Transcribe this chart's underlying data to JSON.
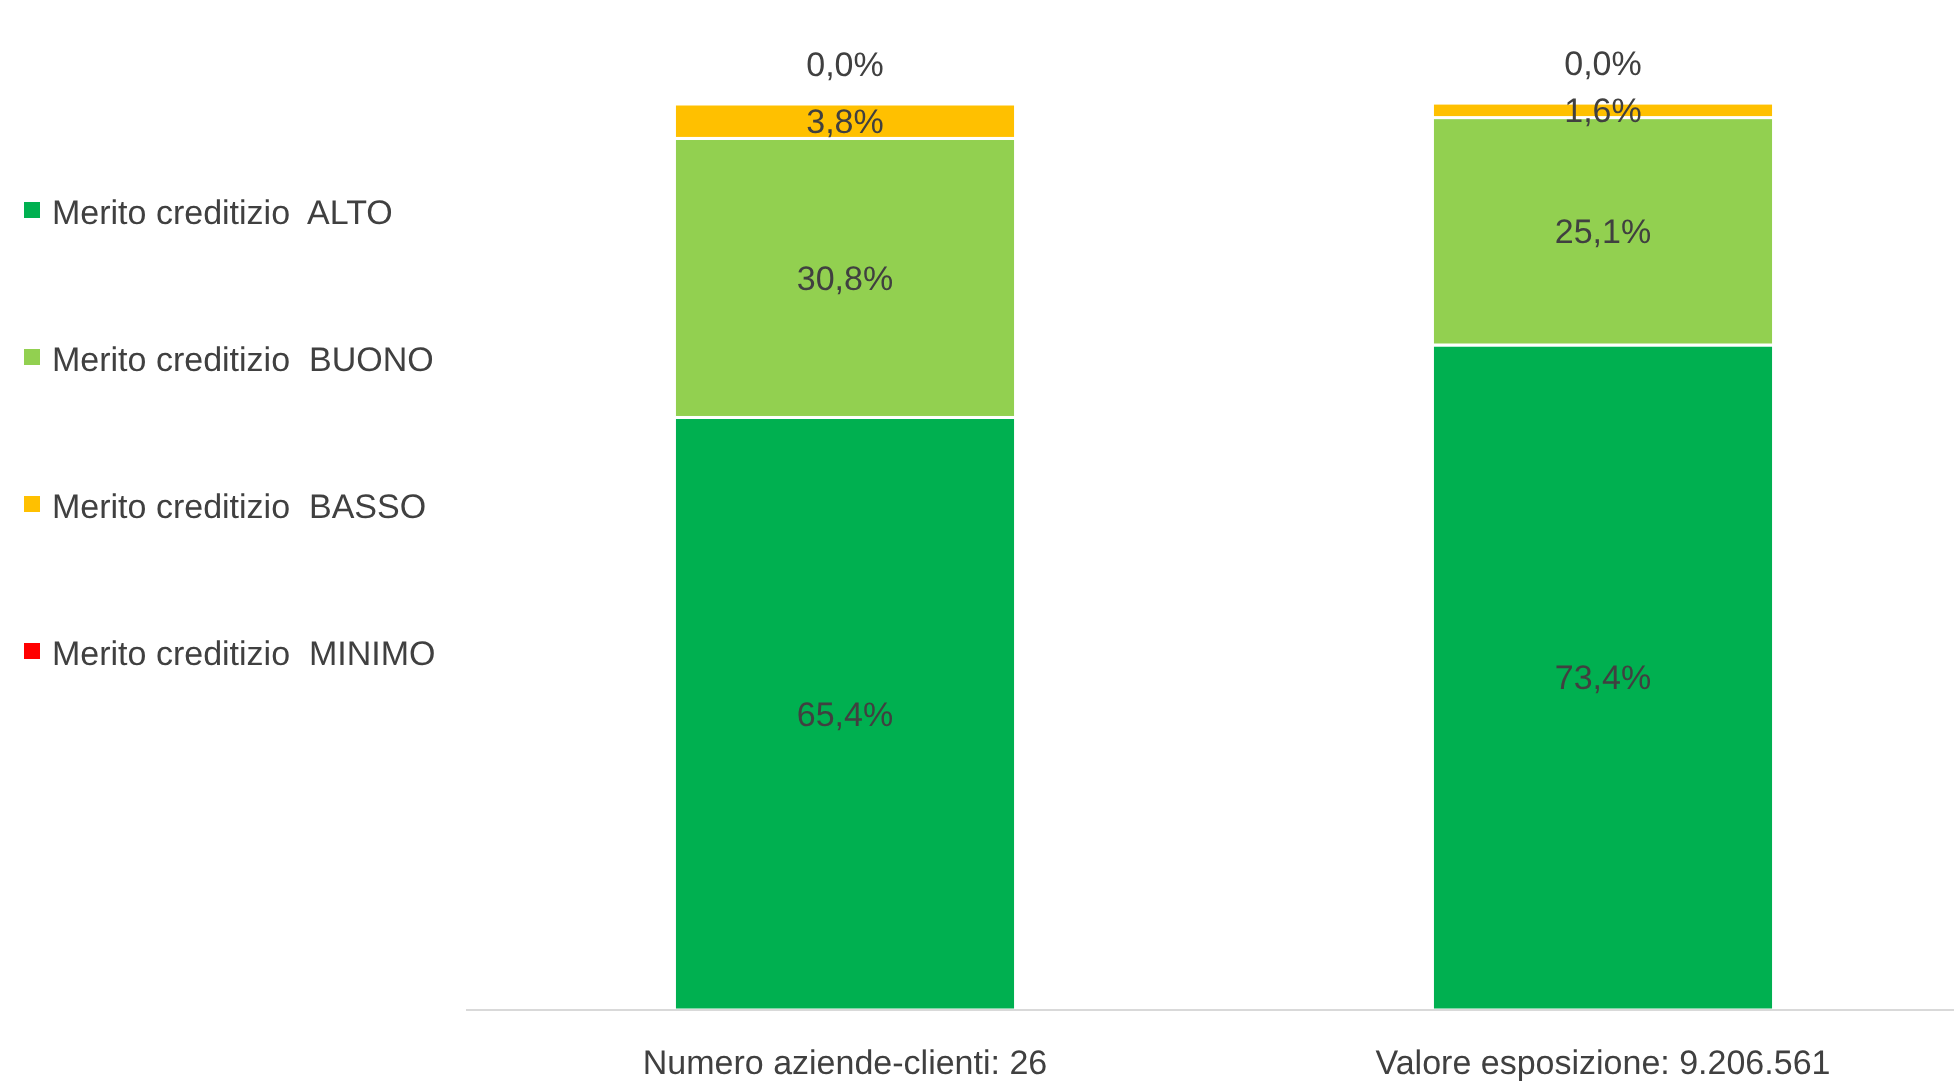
{
  "chart_data": {
    "type": "bar",
    "stacked": true,
    "categories": [
      "Numero aziende-clienti: 26",
      "Valore esposizione: 9.206.561"
    ],
    "ylim": [
      0,
      100
    ],
    "tick_labels": "x",
    "legend": "left",
    "series": [
      {
        "name": "Merito creditizio  ALTO",
        "color": "#00b050",
        "values": [
          65.4,
          73.4
        ],
        "value_labels": [
          "65,4%",
          "73,4%"
        ]
      },
      {
        "name": "Merito creditizio  BUONO",
        "color": "#92d050",
        "values": [
          30.8,
          25.1
        ],
        "value_labels": [
          "30,8%",
          "25,1%"
        ]
      },
      {
        "name": "Merito creditizio  BASSO",
        "color": "#ffc000",
        "values": [
          3.8,
          1.6
        ],
        "value_labels": [
          "3,8%",
          "1,6%"
        ]
      },
      {
        "name": "Merito creditizio  MINIMO",
        "color": "#ff0000",
        "values": [
          0.0,
          0.0
        ],
        "value_labels": [
          "0,0%",
          "0,0%"
        ]
      }
    ]
  }
}
